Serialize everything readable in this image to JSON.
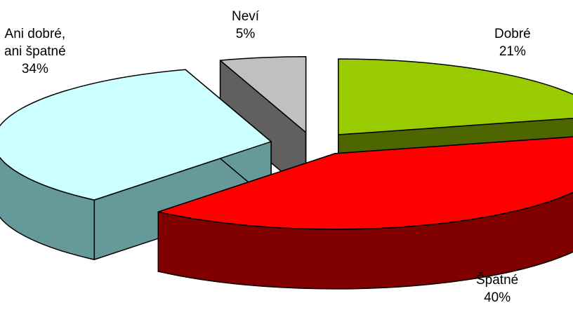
{
  "chart_data": {
    "type": "pie",
    "style": "3d-exploded",
    "title": "",
    "slices": [
      {
        "name": "Dobré",
        "value": 21,
        "value_label": "21%",
        "color": "#99CC00",
        "side_color": "#4D6600"
      },
      {
        "name": "Špatné",
        "value": 40,
        "value_label": "40%",
        "color": "#FF0000",
        "side_color": "#800000"
      },
      {
        "name": "Ani dobré, ani špatné",
        "name_lines": [
          "Ani dobré,",
          "ani špatné"
        ],
        "value": 34,
        "value_label": "34%",
        "color": "#CCFFFF",
        "side_color": "#669999"
      },
      {
        "name": "Neví",
        "value": 5,
        "value_label": "5%",
        "color": "#C0C0C0",
        "side_color": "#606060"
      }
    ]
  }
}
